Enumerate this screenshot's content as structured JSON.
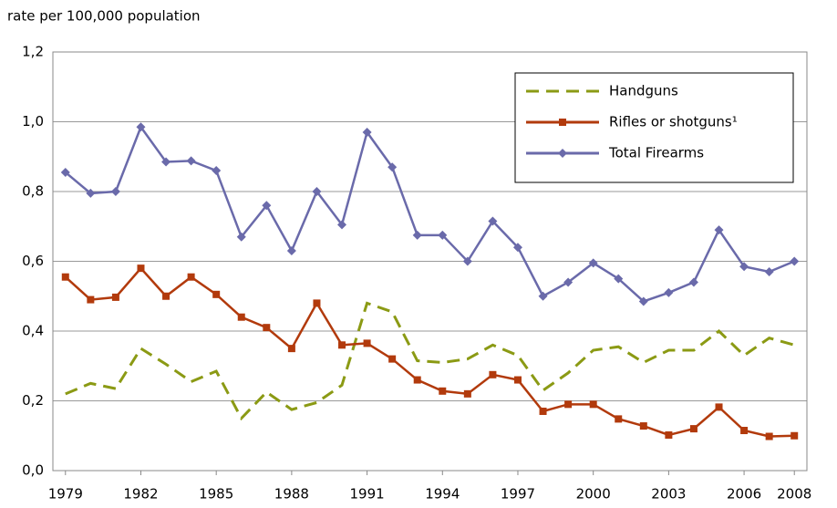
{
  "chart_data": {
    "type": "line",
    "y_axis_label": "rate per 100,000 population",
    "x": [
      1979,
      1980,
      1981,
      1982,
      1983,
      1984,
      1985,
      1986,
      1987,
      1988,
      1989,
      1990,
      1991,
      1992,
      1993,
      1994,
      1995,
      1996,
      1997,
      1998,
      1999,
      2000,
      2001,
      2002,
      2003,
      2004,
      2005,
      2006,
      2007,
      2008
    ],
    "series": [
      {
        "name": "Handguns",
        "color": "#8b9a14",
        "style": "dashed",
        "values": [
          0.22,
          0.25,
          0.235,
          0.35,
          0.305,
          0.255,
          0.285,
          0.15,
          0.225,
          0.175,
          0.195,
          0.245,
          0.48,
          0.455,
          0.315,
          0.31,
          0.32,
          0.36,
          0.33,
          0.23,
          0.28,
          0.345,
          0.355,
          0.31,
          0.345,
          0.345,
          0.4,
          0.33,
          0.38,
          0.36
        ]
      },
      {
        "name": "Rifles or shotguns¹",
        "color": "#b23a0c",
        "marker": "square",
        "values": [
          0.555,
          0.49,
          0.497,
          0.58,
          0.5,
          0.555,
          0.505,
          0.44,
          0.41,
          0.35,
          0.48,
          0.36,
          0.365,
          0.32,
          0.26,
          0.228,
          0.22,
          0.275,
          0.26,
          0.17,
          0.19,
          0.19,
          0.148,
          0.128,
          0.102,
          0.12,
          0.182,
          0.115,
          0.098,
          0.1
        ]
      },
      {
        "name": "Total Firearms",
        "color": "#6a6aaa",
        "marker": "diamond",
        "values": [
          0.855,
          0.795,
          0.8,
          0.985,
          0.885,
          0.888,
          0.86,
          0.67,
          0.76,
          0.63,
          0.8,
          0.705,
          0.97,
          0.87,
          0.675,
          0.675,
          0.6,
          0.715,
          0.64,
          0.5,
          0.54,
          0.595,
          0.55,
          0.485,
          0.51,
          0.54,
          0.69,
          0.585,
          0.57,
          0.6
        ]
      }
    ],
    "xlim": [
      1978.5,
      2008.5
    ],
    "xticks": [
      1979,
      1982,
      1985,
      1988,
      1991,
      1994,
      1997,
      2000,
      2003,
      2006,
      2008
    ],
    "ylim": [
      0,
      1.2
    ],
    "yticks": [
      {
        "value": 0,
        "label": "0,0"
      },
      {
        "value": 0.2,
        "label": "0,2"
      },
      {
        "value": 0.4,
        "label": "0,4"
      },
      {
        "value": 0.6,
        "label": "0,6"
      },
      {
        "value": 0.8,
        "label": "0,8"
      },
      {
        "value": 1.0,
        "label": "1,0"
      },
      {
        "value": 1.2,
        "label": "1,2"
      }
    ],
    "grid": true,
    "legend": "upper right"
  }
}
